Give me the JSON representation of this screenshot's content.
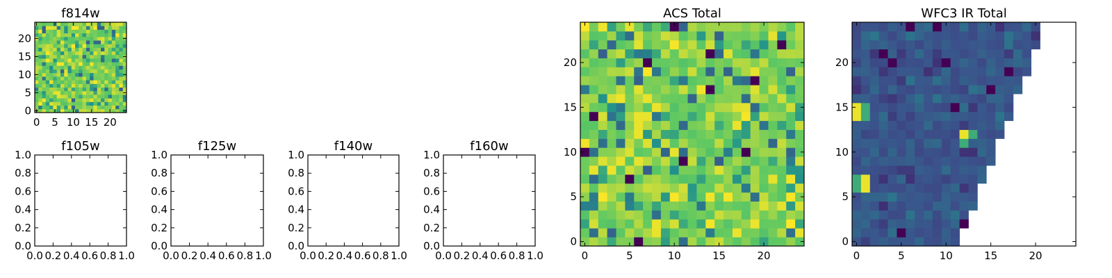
{
  "colors": {
    "axis": "#000000",
    "background": "#ffffff",
    "colormap": [
      "#440154",
      "#3b528b",
      "#21908c",
      "#5dc863",
      "#fde725"
    ]
  },
  "chart_data": [
    {
      "id": "f814w",
      "type": "heatmap",
      "title": "f814w",
      "grid_size": 25,
      "xlim": [
        -0.5,
        24.5
      ],
      "ylim": [
        -0.5,
        24.5
      ],
      "xticks": [
        0,
        5,
        10,
        15,
        20
      ],
      "yticks": [
        0,
        5,
        10,
        15,
        20
      ],
      "xtick_labels": [
        "0",
        "5",
        "10",
        "15",
        "20"
      ],
      "ytick_labels": [
        "0",
        "5",
        "10",
        "15",
        "20"
      ],
      "value_range": [
        0,
        1
      ],
      "seed": 814,
      "row_extent": [],
      "bright_cells": [],
      "dark_cells": [],
      "note": "25x25 pixel map; individual values estimated, dominated by green/yellow"
    },
    {
      "id": "f105w",
      "type": "heatmap",
      "title": "f105w",
      "empty": true,
      "xlim": [
        0,
        1
      ],
      "ylim": [
        0,
        1
      ],
      "xticks": [
        0,
        0.2,
        0.4,
        0.6,
        0.8,
        1.0
      ],
      "yticks": [
        0,
        0.2,
        0.4,
        0.6,
        0.8,
        1.0
      ],
      "xtick_labels": [
        "0.0",
        "0.2",
        "0.4",
        "0.6",
        "0.8",
        "1.0"
      ],
      "ytick_labels": [
        "0.0",
        "0.2",
        "0.4",
        "0.6",
        "0.8",
        "1.0"
      ]
    },
    {
      "id": "f125w",
      "type": "heatmap",
      "title": "f125w",
      "empty": true,
      "xlim": [
        0,
        1
      ],
      "ylim": [
        0,
        1
      ],
      "xticks": [
        0,
        0.2,
        0.4,
        0.6,
        0.8,
        1.0
      ],
      "yticks": [
        0,
        0.2,
        0.4,
        0.6,
        0.8,
        1.0
      ],
      "xtick_labels": [
        "0.0",
        "0.2",
        "0.4",
        "0.6",
        "0.8",
        "1.0"
      ],
      "ytick_labels": [
        "0.0",
        "0.2",
        "0.4",
        "0.6",
        "0.8",
        "1.0"
      ]
    },
    {
      "id": "f140w",
      "type": "heatmap",
      "title": "f140w",
      "empty": true,
      "xlim": [
        0,
        1
      ],
      "ylim": [
        0,
        1
      ],
      "xticks": [
        0,
        0.2,
        0.4,
        0.6,
        0.8,
        1.0
      ],
      "yticks": [
        0,
        0.2,
        0.4,
        0.6,
        0.8,
        1.0
      ],
      "xtick_labels": [
        "0.0",
        "0.2",
        "0.4",
        "0.6",
        "0.8",
        "1.0"
      ],
      "ytick_labels": [
        "0.0",
        "0.2",
        "0.4",
        "0.6",
        "0.8",
        "1.0"
      ]
    },
    {
      "id": "f160w",
      "type": "heatmap",
      "title": "f160w",
      "empty": true,
      "xlim": [
        0,
        1
      ],
      "ylim": [
        0,
        1
      ],
      "xticks": [
        0,
        0.2,
        0.4,
        0.6,
        0.8,
        1.0
      ],
      "yticks": [
        0,
        0.2,
        0.4,
        0.6,
        0.8,
        1.0
      ],
      "xtick_labels": [
        "0.0",
        "0.2",
        "0.4",
        "0.6",
        "0.8",
        "1.0"
      ],
      "ytick_labels": [
        "0.0",
        "0.2",
        "0.4",
        "0.6",
        "0.8",
        "1.0"
      ]
    },
    {
      "id": "acs-total",
      "type": "heatmap",
      "title": "ACS Total",
      "grid_size": 25,
      "xlim": [
        -0.5,
        24.5
      ],
      "ylim": [
        -0.5,
        24.5
      ],
      "xticks": [
        0,
        5,
        10,
        15,
        20
      ],
      "yticks": [
        0,
        5,
        10,
        15,
        20
      ],
      "xtick_labels": [
        "0",
        "5",
        "10",
        "15",
        "20"
      ],
      "ytick_labels": [
        "0",
        "5",
        "10",
        "15",
        "20"
      ],
      "value_range": [
        0,
        1
      ],
      "seed": 2024,
      "row_extent": [],
      "bright_cells": [
        [
          6,
          14
        ],
        [
          6,
          13
        ],
        [
          6,
          12
        ],
        [
          1,
          8
        ],
        [
          3,
          8
        ],
        [
          8,
          1
        ],
        [
          8,
          2
        ],
        [
          7,
          16
        ],
        [
          4,
          9
        ],
        [
          17,
          13
        ]
      ],
      "dark_cells": [
        [
          0,
          10
        ],
        [
          1,
          14
        ],
        [
          5,
          7
        ],
        [
          6,
          0
        ],
        [
          10,
          24
        ],
        [
          14,
          21
        ],
        [
          18,
          10
        ],
        [
          19,
          18
        ],
        [
          14,
          17
        ],
        [
          22,
          22
        ],
        [
          11,
          9
        ],
        [
          7,
          20
        ]
      ],
      "note": "25x25 pixel map; individual values estimated, mostly green/yellow"
    },
    {
      "id": "wfc3-ir-total",
      "type": "heatmap",
      "title": "WFC3 IR Total",
      "grid_size": 25,
      "xlim": [
        -0.5,
        24.5
      ],
      "ylim": [
        -0.5,
        24.5
      ],
      "xticks": [
        0,
        5,
        10,
        15,
        20
      ],
      "yticks": [
        0,
        5,
        10,
        15,
        20
      ],
      "xtick_labels": [
        "0",
        "5",
        "10",
        "15",
        "20"
      ],
      "ytick_labels": [
        "0",
        "5",
        "10",
        "15",
        "20"
      ],
      "value_range": [
        0,
        1
      ],
      "seed": 3,
      "row_extent": [
        11,
        11,
        12,
        12,
        13,
        13,
        13,
        14,
        14,
        15,
        15,
        15,
        16,
        16,
        17,
        17,
        17,
        18,
        18,
        19,
        19,
        19,
        20,
        20,
        20
      ],
      "bright_cells": [
        [
          0,
          15
        ],
        [
          0,
          14
        ],
        [
          1,
          7
        ],
        [
          1,
          6
        ],
        [
          12,
          12
        ]
      ],
      "dark_cells": [
        [
          3,
          21
        ],
        [
          4,
          20
        ],
        [
          5,
          1
        ],
        [
          9,
          24
        ],
        [
          10,
          20
        ],
        [
          11,
          15
        ],
        [
          15,
          17
        ],
        [
          17,
          19
        ],
        [
          12,
          2
        ],
        [
          6,
          24
        ]
      ],
      "mid_cells": [
        [
          0,
          7
        ],
        [
          0,
          6
        ],
        [
          1,
          15
        ],
        [
          1,
          14
        ],
        [
          12,
          11
        ],
        [
          13,
          12
        ]
      ],
      "note": "25x25 pixel map with blank triangular region on the right; values estimated, mostly dark blue"
    }
  ]
}
